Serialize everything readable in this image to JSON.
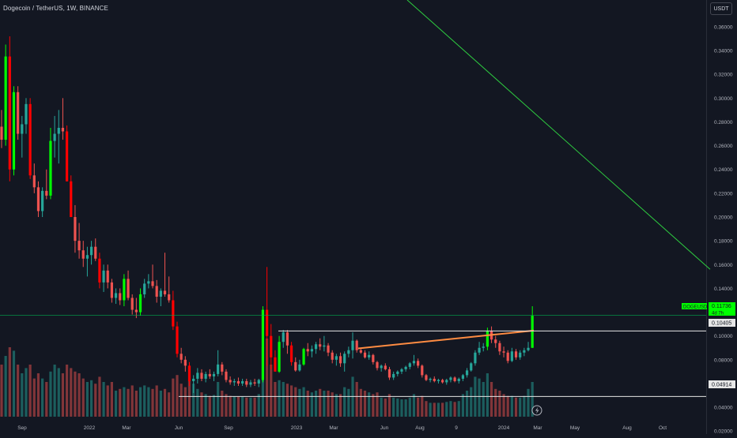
{
  "header": {
    "symbol_title": "Dogecoin / TetherUS, 1W, BINANCE",
    "currency_label": "USDT"
  },
  "price_tags": {
    "symbol": "DOGEUSDT",
    "last_price": "0.11736",
    "countdown": "4d 7h",
    "resistance_price": "0.10405",
    "support_price": "0.04914"
  },
  "colors": {
    "background": "#131722",
    "up": "#26a69a",
    "down": "#ef5350",
    "up_bright": "#00ff00",
    "down_bright": "#ff0000",
    "trendline_orange": "#ff8c42",
    "trendline_green": "#2ecc40",
    "level_line": "#e6e6e6",
    "axis_text": "#b2b5be"
  },
  "chart_data": {
    "type": "candlestick",
    "y_axis": {
      "scale": "linear",
      "ticks": [
        "0.36000",
        "0.34000",
        "0.32000",
        "0.30000",
        "0.28000",
        "0.26000",
        "0.24000",
        "0.22000",
        "0.20000",
        "0.18000",
        "0.16000",
        "0.14000",
        "0.12000",
        "0.10000",
        "0.08000",
        "0.06000",
        "0.04000",
        "0.02000"
      ],
      "range": [
        0.0175,
        0.3825
      ]
    },
    "x_axis": {
      "labels": [
        "Sep",
        "2022",
        "Mar",
        "Jun",
        "Sep",
        "2023",
        "Mar",
        "Jun",
        "Aug",
        "9",
        "2024",
        "Mar",
        "May",
        "Aug",
        "Oct"
      ]
    },
    "candles": [
      [
        0.276,
        0.29,
        0.258,
        0.265,
        300
      ],
      [
        0.265,
        0.345,
        0.26,
        0.335,
        350
      ],
      [
        0.335,
        0.352,
        0.23,
        0.24,
        400
      ],
      [
        0.24,
        0.31,
        0.235,
        0.305,
        380
      ],
      [
        0.305,
        0.31,
        0.265,
        0.27,
        300
      ],
      [
        0.27,
        0.285,
        0.25,
        0.278,
        250
      ],
      [
        0.278,
        0.3,
        0.27,
        0.295,
        280
      ],
      [
        0.295,
        0.3,
        0.232,
        0.235,
        300
      ],
      [
        0.235,
        0.245,
        0.22,
        0.225,
        220
      ],
      [
        0.225,
        0.23,
        0.2,
        0.205,
        250
      ],
      [
        0.205,
        0.225,
        0.2,
        0.222,
        220
      ],
      [
        0.222,
        0.24,
        0.215,
        0.218,
        200
      ],
      [
        0.218,
        0.275,
        0.215,
        0.264,
        260
      ],
      [
        0.264,
        0.285,
        0.25,
        0.27,
        300
      ],
      [
        0.27,
        0.29,
        0.245,
        0.275,
        280
      ],
      [
        0.275,
        0.3,
        0.265,
        0.272,
        250
      ],
      [
        0.272,
        0.277,
        0.23,
        0.23,
        300
      ],
      [
        0.23,
        0.235,
        0.2,
        0.2,
        280
      ],
      [
        0.2,
        0.21,
        0.17,
        0.18,
        260
      ],
      [
        0.18,
        0.195,
        0.165,
        0.172,
        250
      ],
      [
        0.172,
        0.18,
        0.158,
        0.165,
        220
      ],
      [
        0.165,
        0.175,
        0.15,
        0.168,
        200
      ],
      [
        0.168,
        0.18,
        0.16,
        0.175,
        210
      ],
      [
        0.175,
        0.182,
        0.163,
        0.165,
        190
      ],
      [
        0.165,
        0.17,
        0.14,
        0.145,
        230
      ],
      [
        0.145,
        0.16,
        0.137,
        0.155,
        200
      ],
      [
        0.155,
        0.16,
        0.14,
        0.145,
        180
      ],
      [
        0.145,
        0.148,
        0.128,
        0.132,
        200
      ],
      [
        0.132,
        0.14,
        0.127,
        0.136,
        150
      ],
      [
        0.136,
        0.14,
        0.126,
        0.13,
        160
      ],
      [
        0.13,
        0.152,
        0.125,
        0.148,
        170
      ],
      [
        0.148,
        0.155,
        0.13,
        0.132,
        160
      ],
      [
        0.132,
        0.135,
        0.118,
        0.122,
        180
      ],
      [
        0.122,
        0.132,
        0.115,
        0.12,
        150
      ],
      [
        0.12,
        0.14,
        0.117,
        0.135,
        170
      ],
      [
        0.135,
        0.148,
        0.132,
        0.144,
        180
      ],
      [
        0.144,
        0.152,
        0.14,
        0.146,
        170
      ],
      [
        0.146,
        0.16,
        0.14,
        0.142,
        160
      ],
      [
        0.142,
        0.147,
        0.128,
        0.133,
        180
      ],
      [
        0.133,
        0.14,
        0.125,
        0.138,
        150
      ],
      [
        0.138,
        0.17,
        0.133,
        0.135,
        160
      ],
      [
        0.135,
        0.15,
        0.128,
        0.13,
        140
      ],
      [
        0.13,
        0.138,
        0.105,
        0.108,
        220
      ],
      [
        0.108,
        0.112,
        0.082,
        0.085,
        240
      ],
      [
        0.085,
        0.09,
        0.077,
        0.08,
        190
      ],
      [
        0.08,
        0.083,
        0.07,
        0.075,
        170
      ],
      [
        0.075,
        0.078,
        0.058,
        0.062,
        210
      ],
      [
        0.062,
        0.067,
        0.052,
        0.064,
        190
      ],
      [
        0.064,
        0.073,
        0.06,
        0.069,
        160
      ],
      [
        0.069,
        0.072,
        0.062,
        0.064,
        140
      ],
      [
        0.064,
        0.07,
        0.061,
        0.068,
        130
      ],
      [
        0.068,
        0.072,
        0.064,
        0.066,
        120
      ],
      [
        0.066,
        0.07,
        0.062,
        0.068,
        125
      ],
      [
        0.068,
        0.088,
        0.066,
        0.076,
        200
      ],
      [
        0.076,
        0.078,
        0.067,
        0.07,
        150
      ],
      [
        0.07,
        0.072,
        0.061,
        0.063,
        130
      ],
      [
        0.063,
        0.066,
        0.059,
        0.061,
        120
      ],
      [
        0.061,
        0.064,
        0.058,
        0.062,
        115
      ],
      [
        0.062,
        0.065,
        0.058,
        0.06,
        115
      ],
      [
        0.06,
        0.064,
        0.058,
        0.062,
        115
      ],
      [
        0.062,
        0.064,
        0.057,
        0.059,
        110
      ],
      [
        0.059,
        0.063,
        0.057,
        0.061,
        110
      ],
      [
        0.061,
        0.064,
        0.058,
        0.06,
        110
      ],
      [
        0.06,
        0.064,
        0.057,
        0.063,
        130
      ],
      [
        0.063,
        0.125,
        0.061,
        0.122,
        400
      ],
      [
        0.122,
        0.158,
        0.075,
        0.1,
        450
      ],
      [
        0.1,
        0.11,
        0.072,
        0.082,
        300
      ],
      [
        0.082,
        0.088,
        0.07,
        0.07,
        200
      ],
      [
        0.07,
        0.1,
        0.069,
        0.095,
        210
      ],
      [
        0.095,
        0.105,
        0.09,
        0.103,
        200
      ],
      [
        0.103,
        0.105,
        0.085,
        0.092,
        190
      ],
      [
        0.092,
        0.095,
        0.075,
        0.078,
        180
      ],
      [
        0.078,
        0.082,
        0.07,
        0.071,
        170
      ],
      [
        0.071,
        0.08,
        0.07,
        0.076,
        160
      ],
      [
        0.076,
        0.09,
        0.075,
        0.089,
        170
      ],
      [
        0.089,
        0.094,
        0.083,
        0.087,
        150
      ],
      [
        0.087,
        0.092,
        0.082,
        0.089,
        140
      ],
      [
        0.089,
        0.095,
        0.085,
        0.093,
        150
      ],
      [
        0.093,
        0.098,
        0.088,
        0.091,
        160
      ],
      [
        0.091,
        0.1,
        0.087,
        0.092,
        150
      ],
      [
        0.092,
        0.094,
        0.083,
        0.086,
        150
      ],
      [
        0.086,
        0.088,
        0.077,
        0.08,
        140
      ],
      [
        0.08,
        0.085,
        0.075,
        0.083,
        130
      ],
      [
        0.083,
        0.086,
        0.074,
        0.077,
        130
      ],
      [
        0.077,
        0.087,
        0.07,
        0.085,
        170
      ],
      [
        0.085,
        0.091,
        0.082,
        0.088,
        160
      ],
      [
        0.088,
        0.103,
        0.081,
        0.096,
        230
      ],
      [
        0.096,
        0.097,
        0.086,
        0.088,
        200
      ],
      [
        0.088,
        0.09,
        0.085,
        0.086,
        160
      ],
      [
        0.086,
        0.088,
        0.081,
        0.082,
        150
      ],
      [
        0.082,
        0.087,
        0.08,
        0.084,
        140
      ],
      [
        0.084,
        0.085,
        0.076,
        0.078,
        130
      ],
      [
        0.078,
        0.079,
        0.071,
        0.073,
        140
      ],
      [
        0.073,
        0.076,
        0.07,
        0.075,
        110
      ],
      [
        0.075,
        0.077,
        0.071,
        0.072,
        105
      ],
      [
        0.072,
        0.074,
        0.063,
        0.065,
        130
      ],
      [
        0.065,
        0.07,
        0.063,
        0.068,
        110
      ],
      [
        0.068,
        0.071,
        0.066,
        0.07,
        105
      ],
      [
        0.07,
        0.073,
        0.068,
        0.072,
        100
      ],
      [
        0.072,
        0.075,
        0.07,
        0.074,
        100
      ],
      [
        0.074,
        0.078,
        0.072,
        0.077,
        110
      ],
      [
        0.077,
        0.084,
        0.075,
        0.079,
        130
      ],
      [
        0.079,
        0.081,
        0.073,
        0.075,
        110
      ],
      [
        0.075,
        0.076,
        0.065,
        0.067,
        120
      ],
      [
        0.067,
        0.068,
        0.062,
        0.063,
        90
      ],
      [
        0.063,
        0.065,
        0.061,
        0.064,
        80
      ],
      [
        0.064,
        0.066,
        0.061,
        0.062,
        80
      ],
      [
        0.062,
        0.064,
        0.06,
        0.063,
        80
      ],
      [
        0.063,
        0.064,
        0.06,
        0.061,
        80
      ],
      [
        0.061,
        0.064,
        0.059,
        0.063,
        85
      ],
      [
        0.063,
        0.066,
        0.061,
        0.065,
        90
      ],
      [
        0.065,
        0.066,
        0.061,
        0.062,
        85
      ],
      [
        0.062,
        0.065,
        0.06,
        0.064,
        90
      ],
      [
        0.064,
        0.068,
        0.062,
        0.067,
        130
      ],
      [
        0.067,
        0.073,
        0.065,
        0.071,
        150
      ],
      [
        0.071,
        0.078,
        0.07,
        0.077,
        170
      ],
      [
        0.077,
        0.088,
        0.075,
        0.086,
        230
      ],
      [
        0.086,
        0.095,
        0.084,
        0.09,
        220
      ],
      [
        0.09,
        0.094,
        0.087,
        0.091,
        200
      ],
      [
        0.091,
        0.107,
        0.088,
        0.104,
        250
      ],
      [
        0.104,
        0.108,
        0.094,
        0.097,
        200
      ],
      [
        0.097,
        0.1,
        0.09,
        0.094,
        160
      ],
      [
        0.094,
        0.096,
        0.084,
        0.087,
        150
      ],
      [
        0.087,
        0.091,
        0.082,
        0.086,
        130
      ],
      [
        0.086,
        0.088,
        0.077,
        0.079,
        120
      ],
      [
        0.079,
        0.09,
        0.078,
        0.087,
        120
      ],
      [
        0.087,
        0.089,
        0.08,
        0.082,
        110
      ],
      [
        0.082,
        0.088,
        0.08,
        0.086,
        110
      ],
      [
        0.086,
        0.09,
        0.083,
        0.088,
        120
      ],
      [
        0.088,
        0.095,
        0.087,
        0.09,
        160
      ],
      [
        0.09,
        0.125,
        0.09,
        0.117,
        200
      ]
    ],
    "drawings": [
      {
        "kind": "trendline",
        "color": "orange",
        "from": [
          0.0895,
          453
        ],
        "to": [
          0.1045,
          675
        ]
      },
      {
        "kind": "trendline",
        "color": "green",
        "from": [
          0.3825,
          515
        ],
        "to": [
          0.156,
          898
        ]
      },
      {
        "kind": "horizontal_ray",
        "color": "white",
        "price": 0.1042,
        "from_x": 352
      },
      {
        "kind": "horizontal_ray",
        "color": "white",
        "price": 0.0491,
        "from_x": 226
      }
    ],
    "last_price_line": 0.1174,
    "legend": "none",
    "grid": "off"
  }
}
